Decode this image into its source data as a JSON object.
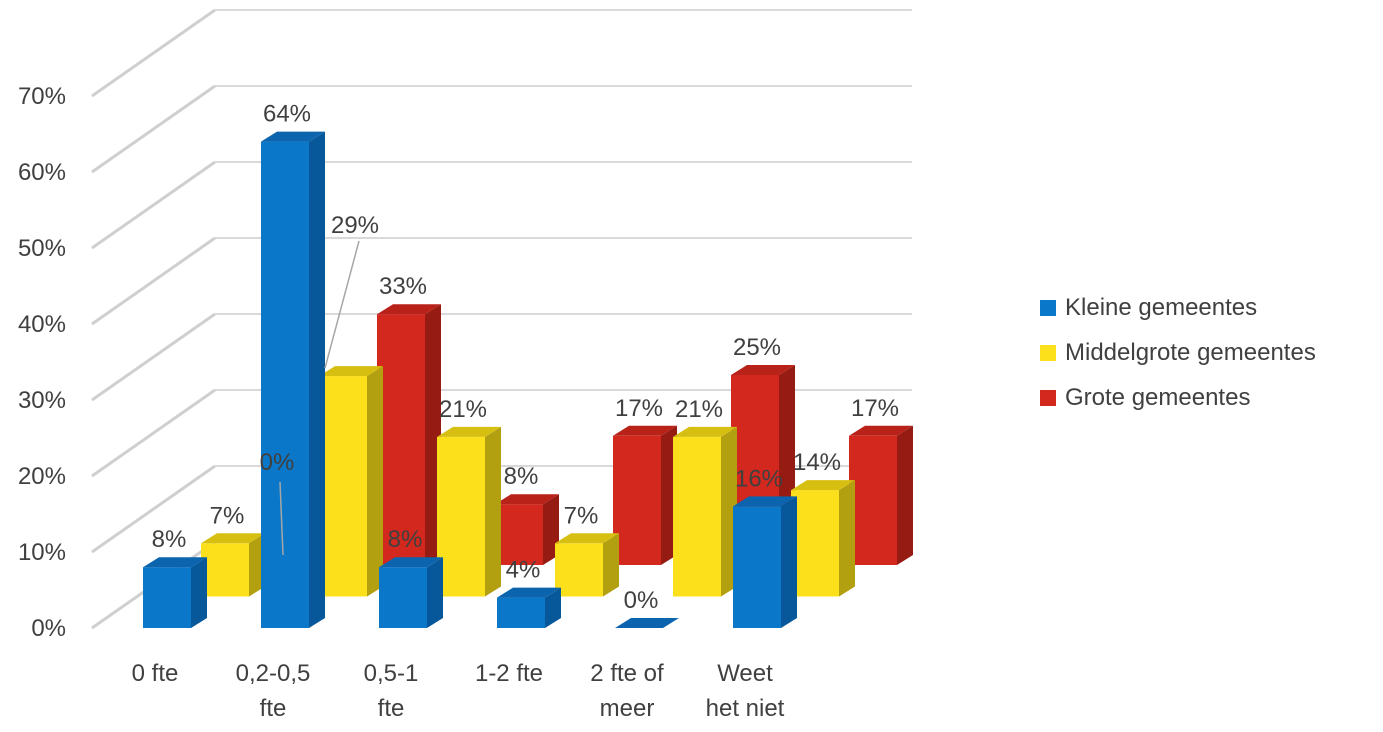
{
  "chart_data": {
    "type": "bar",
    "subtype": "3d-clustered-column",
    "categories": [
      "0 fte",
      "0,2-0,5 fte",
      "0,5-1 fte",
      "1-2 fte",
      "2 fte of meer",
      "Weet het niet"
    ],
    "category_lines": [
      [
        "0 fte"
      ],
      [
        "0,2-0,5",
        "fte"
      ],
      [
        "0,5-1",
        "fte"
      ],
      [
        "1-2 fte"
      ],
      [
        "2 fte of",
        "meer"
      ],
      [
        "Weet",
        "het niet"
      ]
    ],
    "series": [
      {
        "name": "Kleine gemeentes",
        "values": [
          8,
          64,
          8,
          4,
          0,
          16
        ],
        "labels": [
          "8%",
          "64%",
          "8%",
          "4%",
          "0%",
          "16%"
        ]
      },
      {
        "name": "Middelgrote gemeentes",
        "values": [
          7,
          29,
          21,
          7,
          21,
          14
        ],
        "labels": [
          "7%",
          "29%",
          "21%",
          "7%",
          "21%",
          "14%"
        ]
      },
      {
        "name": "Grote gemeentes",
        "values": [
          0,
          33,
          8,
          17,
          25,
          17
        ],
        "labels": [
          "0%",
          "33%",
          "8%",
          "17%",
          "25%",
          "17%"
        ]
      }
    ],
    "y_ticks": [
      "0%",
      "10%",
      "20%",
      "30%",
      "40%",
      "50%",
      "60%",
      "70%"
    ],
    "ylim": [
      0,
      70
    ],
    "legend_position": "right",
    "grid": true,
    "colors": {
      "Kleine gemeentes": {
        "front": "#0a77c8",
        "side": "#07589a",
        "top": "#0b64ad"
      },
      "Middelgrote gemeentes": {
        "front": "#fbe01b",
        "side": "#b3a010",
        "top": "#d7bf12"
      },
      "Grote gemeentes": {
        "front": "#d3281e",
        "side": "#961b12",
        "top": "#b82218"
      }
    },
    "gridline_color": "#d9d9d9",
    "text_color": "#404040"
  }
}
